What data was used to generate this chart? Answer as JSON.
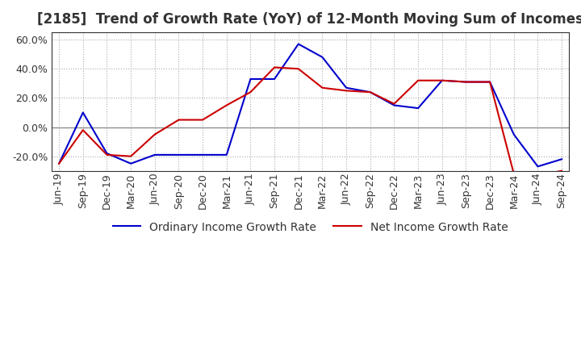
{
  "title": "[2185]  Trend of Growth Rate (YoY) of 12-Month Moving Sum of Incomes",
  "title_fontsize": 12,
  "tick_fontsize": 9,
  "legend_fontsize": 10,
  "background_color": "#ffffff",
  "grid_color": "#aaaaaa",
  "xlabels": [
    "Jun-19",
    "Sep-19",
    "Dec-19",
    "Mar-20",
    "Jun-20",
    "Sep-20",
    "Dec-20",
    "Mar-21",
    "Jun-21",
    "Sep-21",
    "Dec-21",
    "Mar-22",
    "Jun-22",
    "Sep-22",
    "Dec-22",
    "Mar-23",
    "Jun-23",
    "Sep-23",
    "Dec-23",
    "Mar-24",
    "Jun-24",
    "Sep-24"
  ],
  "ordinary_income": [
    -25,
    10,
    -18,
    -25,
    -19,
    -19,
    -19,
    -19,
    33,
    33,
    57,
    48,
    27,
    24,
    15,
    13,
    32,
    31,
    31,
    -5,
    -27,
    -22
  ],
  "net_income": [
    -25,
    -2,
    -19,
    -20,
    -5,
    5,
    5,
    15,
    24,
    41,
    40,
    27,
    25,
    24,
    16,
    32,
    32,
    31,
    31,
    -32,
    -33,
    -30
  ],
  "ylim": [
    -30,
    65
  ],
  "yticks": [
    -20.0,
    0.0,
    20.0,
    40.0,
    60.0
  ],
  "ordinary_color": "#0000cc",
  "net_color": "#cc0000",
  "line_width": 1.5
}
